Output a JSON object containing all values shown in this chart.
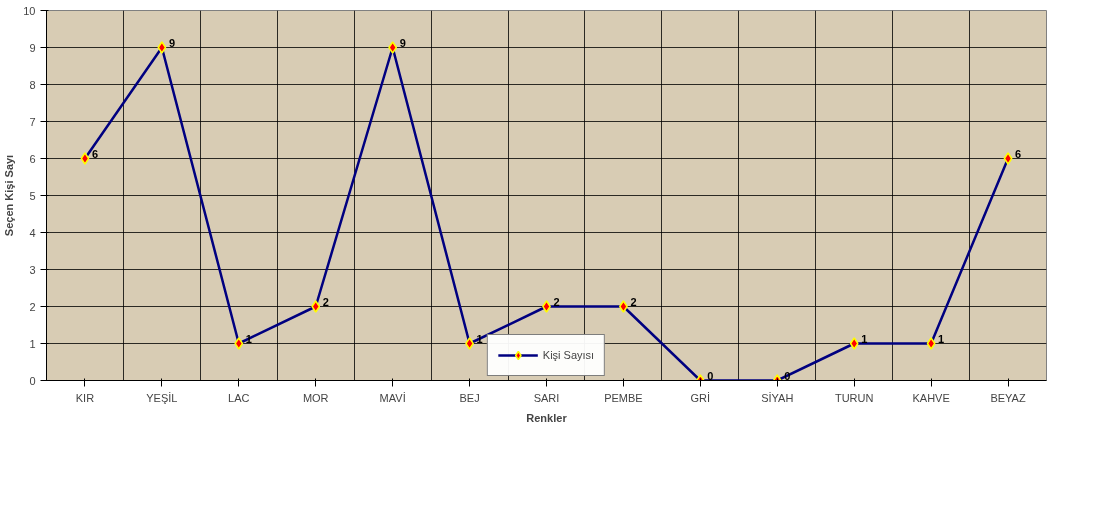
{
  "chart_data": {
    "type": "line",
    "xlabel": "Renkler",
    "ylabel": "Seçen Kişi Sayı",
    "categories": [
      "KIR",
      "YEŞİL",
      "LAC",
      "MOR",
      "MAVİ",
      "BEJ",
      "SARI",
      "PEMBE",
      "GRİ",
      "SİYAH",
      "TURUN",
      "KAHVE",
      "BEYAZ"
    ],
    "series": [
      {
        "name": "Kişi Sayısı",
        "color": "#000080",
        "values": [
          6,
          9,
          1,
          2,
          9,
          1,
          2,
          2,
          0,
          0,
          1,
          1,
          6
        ]
      }
    ],
    "ylim": [
      0,
      10
    ],
    "yticks": [
      0,
      1,
      2,
      3,
      4,
      5,
      6,
      7,
      8,
      9,
      10
    ],
    "grid": true,
    "legend": "bottom",
    "marker": "diamond",
    "line_style": "solid",
    "data_labels": true
  }
}
